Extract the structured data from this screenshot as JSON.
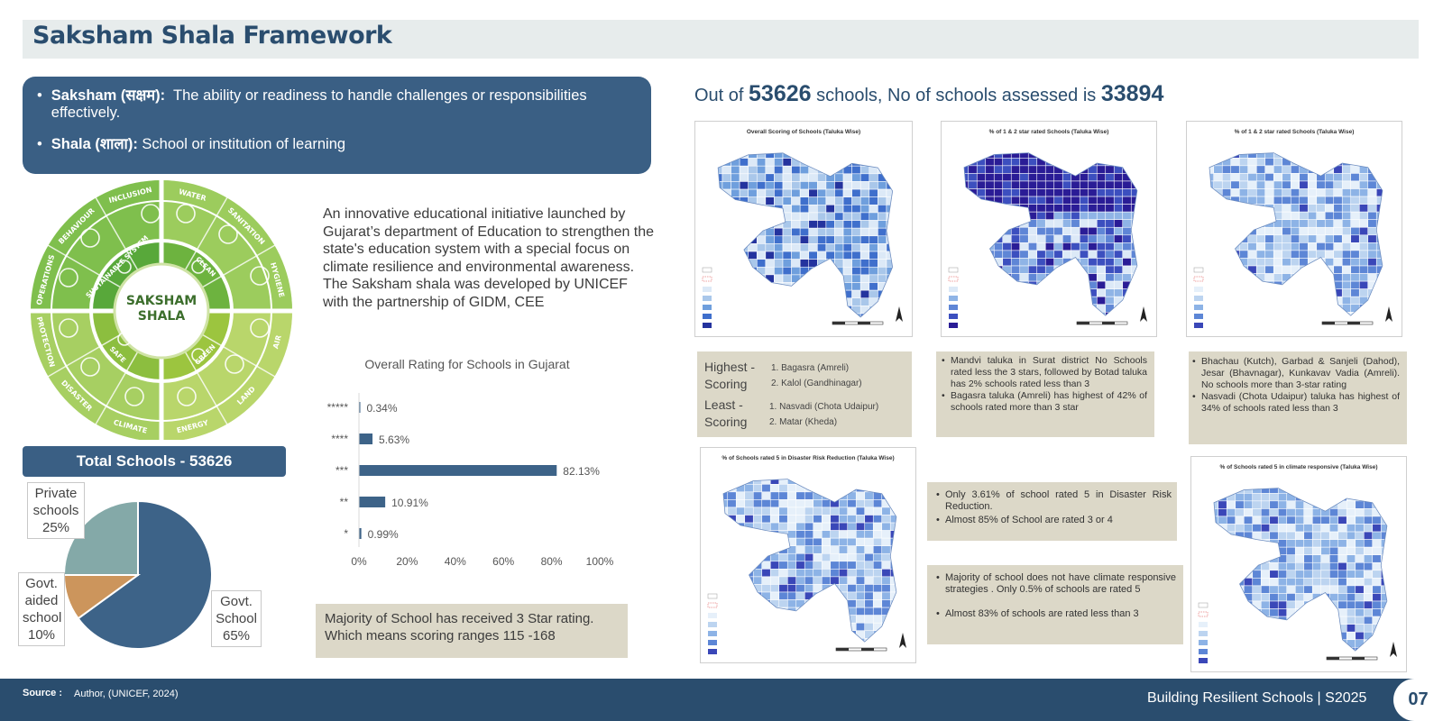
{
  "header": {
    "title": "Saksham Shala Framework"
  },
  "definitions": [
    {
      "term": "Saksham (सक्षम):",
      "text": "The ability or readiness to handle challenges or responsibilities effectively."
    },
    {
      "term": "Shala (शाला):",
      "text": "School or institution of learning"
    }
  ],
  "wheel": {
    "center": [
      "SAKSHAM",
      "SHALA"
    ],
    "inner": [
      "SUSTAINABLE SYSTEM",
      "CLEAN",
      "GREEN",
      "SAFE"
    ],
    "outer": [
      "INCLUSION",
      "WATER",
      "SANITATION",
      "HYGIENE",
      "AIR",
      "LAND",
      "ENERGY",
      "CLIMATE",
      "DISASTER",
      "PROTECTION",
      "OPERATIONS",
      "BEHAVIOUR"
    ]
  },
  "intro": {
    "p1": "An innovative educational initiative launched by Gujarat’s department  of Education to strengthen the state's education system with a special focus on climate resilience and environmental awareness.",
    "p2": "The Saksham shala was developed  by UNICEF with the partnership of GIDM, CEE"
  },
  "chart_data": [
    {
      "type": "bar",
      "title": "Overall Rating for Schools in Gujarat",
      "categories": [
        "*****",
        "****",
        "***",
        "**",
        "*"
      ],
      "values": [
        0.34,
        5.63,
        82.13,
        10.91,
        0.99
      ],
      "value_labels": [
        "0.34%",
        "5.63%",
        "82.13%",
        "10.91%",
        "0.99%"
      ],
      "xlim": [
        0,
        100
      ],
      "xticks": [
        "0%",
        "20%",
        "40%",
        "60%",
        "80%",
        "100%"
      ],
      "orientation": "horizontal",
      "color": "#3d6388"
    },
    {
      "type": "pie",
      "title": "",
      "slices": [
        {
          "label": [
            "Govt.",
            "School",
            "65%"
          ],
          "value": 65,
          "color": "#3d6388"
        },
        {
          "label": [
            "Govt.",
            "aided",
            "school",
            "10%"
          ],
          "value": 10,
          "color": "#cc955c"
        },
        {
          "label": [
            "Private",
            "schools",
            "25%"
          ],
          "value": 25,
          "color": "#84a9a8"
        }
      ]
    }
  ],
  "note_chart": "Majority of School has received 3 Star rating. Which means scoring ranges 115 -168",
  "total": {
    "label": "Total Schools   - 53626"
  },
  "assessment": {
    "pre": "Out of ",
    "total": "53626",
    "mid": " schools, No of schools assessed is ",
    "assessed": "33894"
  },
  "maps": {
    "m1": "Overall Scoring of Schools (Taluka Wise)",
    "m2": "% of 1 & 2 star rated Schools (Taluka Wise)",
    "m3": "% of 1 & 2 star rated Schools (Taluka Wise)",
    "m4": "% of Schools rated 5 in Disaster Risk Reduction  (Taluka Wise)",
    "m5": "% of Schools rated 5 in climate responsive (Taluka Wise)"
  },
  "scoring": {
    "highest_label": "Highest - Scoring",
    "highest": [
      "1. Bagasra (Amreli)",
      "2. Kalol (Gandhinagar)"
    ],
    "least_label": "Least - Scoring",
    "least": [
      "1. Nasvadi (Chota Udaipur)",
      "2. Matar (Kheda)"
    ]
  },
  "notes": {
    "mid": [
      "Mandvi taluka in Surat district No Schools rated less the 3 stars, followed by Botad taluka has 2% schools rated less than 3",
      "Bagasra taluka (Amreli) has highest of 42% of schools rated more than 3 star"
    ],
    "right": [
      "Bhachau (Kutch),  Garbad & Sanjeli (Dahod), Jesar (Bhavnagar), Kunkavav Vadia (Amreli). No schools more than 3-star rating",
      "Nasvadi (Chota Udaipur) taluka has highest of 34% of schools rated less than 3"
    ],
    "drr": [
      "Only 3.61% of school rated 5 in Disaster Risk Reduction.",
      "Almost 85% of School are rated 3 or 4"
    ],
    "climate": [
      "Majority of school does not have climate responsive strategies . Only 0.5% of schools are rated 5",
      "Almost 83% of schools are rated less than 3"
    ]
  },
  "footer": {
    "source_label": "Source :",
    "source": "Author, (UNICEF, 2024)",
    "title": "Building Resilient Schools | S2025",
    "page": "07"
  }
}
